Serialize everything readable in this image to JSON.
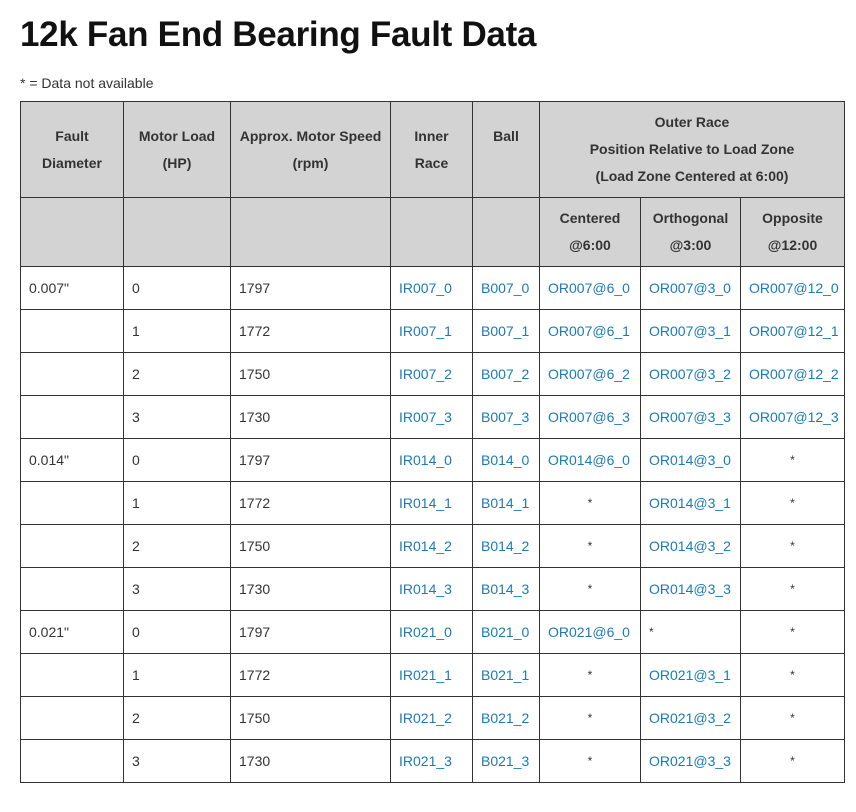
{
  "page": {
    "title": "12k Fan End Bearing Fault Data",
    "note": "* = Data not available"
  },
  "table": {
    "headers": {
      "fault_diameter": [
        "Fault",
        "Diameter"
      ],
      "motor_load": [
        "Motor Load",
        "(HP)"
      ],
      "motor_speed": [
        "Approx. Motor Speed",
        "(rpm)"
      ],
      "inner_race": [
        "Inner",
        "Race"
      ],
      "ball": [
        "Ball"
      ],
      "outer_race": [
        "Outer Race",
        "Position Relative to Load Zone",
        "(Load Zone Centered at 6:00)"
      ],
      "centered": [
        "Centered",
        "@6:00"
      ],
      "orthogonal": [
        "Orthogonal",
        "@3:00"
      ],
      "opposite": [
        "Opposite",
        "@12:00"
      ]
    },
    "rows": [
      {
        "diameter": "0.007\"",
        "load": "0",
        "speed": "1797",
        "inner": "IR007_0",
        "ball": "B007_0",
        "centered": "OR007@6_0",
        "orthogonal": "OR007@3_0",
        "opposite": "OR007@12_0"
      },
      {
        "diameter": "",
        "load": "1",
        "speed": "1772",
        "inner": "IR007_1",
        "ball": "B007_1",
        "centered": "OR007@6_1",
        "orthogonal": "OR007@3_1",
        "opposite": "OR007@12_1"
      },
      {
        "diameter": "",
        "load": "2",
        "speed": "1750",
        "inner": "IR007_2",
        "ball": "B007_2",
        "centered": "OR007@6_2",
        "orthogonal": "OR007@3_2",
        "opposite": "OR007@12_2"
      },
      {
        "diameter": "",
        "load": "3",
        "speed": "1730",
        "inner": "IR007_3",
        "ball": "B007_3",
        "centered": "OR007@6_3",
        "orthogonal": "OR007@3_3",
        "opposite": "OR007@12_3"
      },
      {
        "diameter": "0.014\"",
        "load": "0",
        "speed": "1797",
        "inner": "IR014_0",
        "ball": "B014_0",
        "centered": "OR014@6_0",
        "orthogonal": "OR014@3_0",
        "opposite": "*"
      },
      {
        "diameter": "",
        "load": "1",
        "speed": "1772",
        "inner": "IR014_1",
        "ball": "B014_1",
        "centered": "*",
        "orthogonal": "OR014@3_1",
        "opposite": "*"
      },
      {
        "diameter": "",
        "load": "2",
        "speed": "1750",
        "inner": "IR014_2",
        "ball": "B014_2",
        "centered": "*",
        "orthogonal": "OR014@3_2",
        "opposite": "*"
      },
      {
        "diameter": "",
        "load": "3",
        "speed": "1730",
        "inner": "IR014_3",
        "ball": "B014_3",
        "centered": "*",
        "orthogonal": "OR014@3_3",
        "opposite": "*"
      },
      {
        "diameter": "0.021\"",
        "load": "0",
        "speed": "1797",
        "inner": "IR021_0",
        "ball": "B021_0",
        "centered": "OR021@6_0",
        "orthogonal": "*",
        "opposite": "*"
      },
      {
        "diameter": "",
        "load": "1",
        "speed": "1772",
        "inner": "IR021_1",
        "ball": "B021_1",
        "centered": "*",
        "orthogonal": "OR021@3_1",
        "opposite": "*"
      },
      {
        "diameter": "",
        "load": "2",
        "speed": "1750",
        "inner": "IR021_2",
        "ball": "B021_2",
        "centered": "*",
        "orthogonal": "OR021@3_2",
        "opposite": "*"
      },
      {
        "diameter": "",
        "load": "3",
        "speed": "1730",
        "inner": "IR021_3",
        "ball": "B021_3",
        "centered": "*",
        "orthogonal": "OR021@3_3",
        "opposite": "*"
      }
    ]
  },
  "colors": {
    "link": "#1a7bb8",
    "header_bg": "#d3d3d3",
    "border": "#333333"
  }
}
